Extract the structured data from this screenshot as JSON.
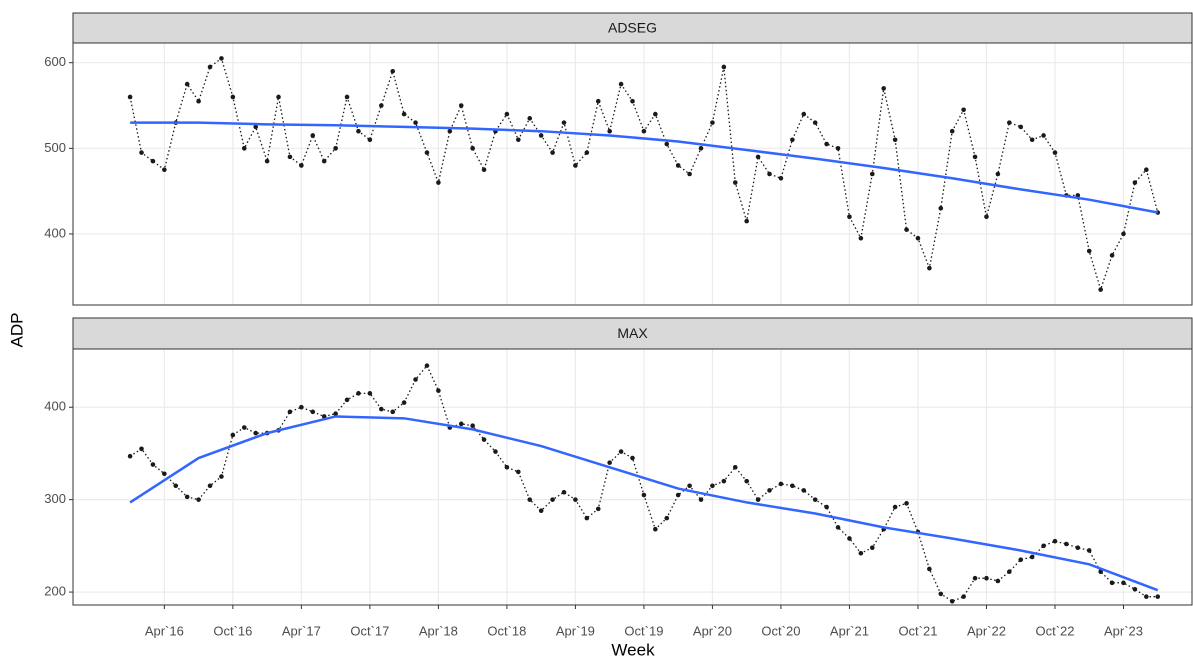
{
  "chart_data": [
    {
      "type": "line",
      "title": "ADSEG",
      "ylabel": "ADP",
      "x": [
        "2016-01",
        "2016-02",
        "2016-03",
        "2016-04",
        "2016-05",
        "2016-06",
        "2016-07",
        "2016-08",
        "2016-09",
        "2016-10",
        "2016-11",
        "2016-12",
        "2017-01",
        "2017-02",
        "2017-03",
        "2017-04",
        "2017-05",
        "2017-06",
        "2017-07",
        "2017-08",
        "2017-09",
        "2017-10",
        "2017-11",
        "2017-12",
        "2018-01",
        "2018-02",
        "2018-03",
        "2018-04",
        "2018-05",
        "2018-06",
        "2018-07",
        "2018-08",
        "2018-09",
        "2018-10",
        "2018-11",
        "2018-12",
        "2019-01",
        "2019-02",
        "2019-03",
        "2019-04",
        "2019-05",
        "2019-06",
        "2019-07",
        "2019-08",
        "2019-09",
        "2019-10",
        "2019-11",
        "2019-12",
        "2020-01",
        "2020-02",
        "2020-03",
        "2020-04",
        "2020-05",
        "2020-06",
        "2020-07",
        "2020-08",
        "2020-09",
        "2020-10",
        "2020-11",
        "2020-12",
        "2021-01",
        "2021-02",
        "2021-03",
        "2021-04",
        "2021-05",
        "2021-06",
        "2021-07",
        "2021-08",
        "2021-09",
        "2021-10",
        "2021-11",
        "2021-12",
        "2022-01",
        "2022-02",
        "2022-03",
        "2022-04",
        "2022-05",
        "2022-06",
        "2022-07",
        "2022-08",
        "2022-09",
        "2022-10",
        "2022-11",
        "2022-12",
        "2023-01",
        "2023-02",
        "2023-03",
        "2023-04",
        "2023-05",
        "2023-06",
        "2023-07"
      ],
      "values": [
        560,
        495,
        485,
        475,
        530,
        575,
        555,
        595,
        605,
        560,
        500,
        525,
        485,
        560,
        490,
        480,
        515,
        485,
        500,
        560,
        520,
        510,
        550,
        590,
        540,
        530,
        495,
        460,
        520,
        550,
        500,
        475,
        520,
        540,
        510,
        535,
        515,
        495,
        530,
        480,
        495,
        555,
        520,
        575,
        555,
        520,
        540,
        505,
        480,
        470,
        500,
        530,
        595,
        460,
        415,
        490,
        470,
        465,
        510,
        540,
        530,
        505,
        500,
        420,
        395,
        470,
        570,
        510,
        405,
        395,
        360,
        430,
        520,
        545,
        490,
        420,
        470,
        530,
        525,
        510,
        515,
        495,
        445,
        445,
        380,
        335,
        375,
        400,
        460,
        475,
        425
      ],
      "color": "#1a1a1a",
      "smooth": {
        "x": [
          "2016-01",
          "2016-07",
          "2017-01",
          "2017-07",
          "2018-01",
          "2018-07",
          "2019-01",
          "2019-07",
          "2020-01",
          "2020-07",
          "2021-01",
          "2021-07",
          "2022-01",
          "2022-07",
          "2023-01",
          "2023-07"
        ],
        "values": [
          530,
          530,
          528,
          527,
          525,
          523,
          520,
          515,
          508,
          498,
          488,
          477,
          465,
          452,
          440,
          425
        ],
        "color": "#3366ff"
      },
      "xlim": [
        "2015-08",
        "2023-10"
      ],
      "ylim": [
        317,
        623
      ],
      "yticks": [
        400,
        500,
        600
      ],
      "xticks": [
        {
          "value": "2016-04",
          "label": "Apr`16"
        },
        {
          "value": "2016-10",
          "label": "Oct`16"
        },
        {
          "value": "2017-04",
          "label": "Apr`17"
        },
        {
          "value": "2017-10",
          "label": "Oct`17"
        },
        {
          "value": "2018-04",
          "label": "Apr`18"
        },
        {
          "value": "2018-10",
          "label": "Oct`18"
        },
        {
          "value": "2019-04",
          "label": "Apr`19"
        },
        {
          "value": "2019-10",
          "label": "Oct`19"
        },
        {
          "value": "2020-04",
          "label": "Apr`20"
        },
        {
          "value": "2020-10",
          "label": "Oct`20"
        },
        {
          "value": "2021-04",
          "label": "Apr`21"
        },
        {
          "value": "2021-10",
          "label": "Oct`21"
        },
        {
          "value": "2022-04",
          "label": "Apr`22"
        },
        {
          "value": "2022-10",
          "label": "Oct`22"
        },
        {
          "value": "2023-04",
          "label": "Apr`23"
        }
      ],
      "grid": true
    },
    {
      "type": "line",
      "title": "MAX",
      "xlabel": "Week",
      "x": [
        "2016-01",
        "2016-02",
        "2016-03",
        "2016-04",
        "2016-05",
        "2016-06",
        "2016-07",
        "2016-08",
        "2016-09",
        "2016-10",
        "2016-11",
        "2016-12",
        "2017-01",
        "2017-02",
        "2017-03",
        "2017-04",
        "2017-05",
        "2017-06",
        "2017-07",
        "2017-08",
        "2017-09",
        "2017-10",
        "2017-11",
        "2017-12",
        "2018-01",
        "2018-02",
        "2018-03",
        "2018-04",
        "2018-05",
        "2018-06",
        "2018-07",
        "2018-08",
        "2018-09",
        "2018-10",
        "2018-11",
        "2018-12",
        "2019-01",
        "2019-02",
        "2019-03",
        "2019-04",
        "2019-05",
        "2019-06",
        "2019-07",
        "2019-08",
        "2019-09",
        "2019-10",
        "2019-11",
        "2019-12",
        "2020-01",
        "2020-02",
        "2020-03",
        "2020-04",
        "2020-05",
        "2020-06",
        "2020-07",
        "2020-08",
        "2020-09",
        "2020-10",
        "2020-11",
        "2020-12",
        "2021-01",
        "2021-02",
        "2021-03",
        "2021-04",
        "2021-05",
        "2021-06",
        "2021-07",
        "2021-08",
        "2021-09",
        "2021-10",
        "2021-11",
        "2021-12",
        "2022-01",
        "2022-02",
        "2022-03",
        "2022-04",
        "2022-05",
        "2022-06",
        "2022-07",
        "2022-08",
        "2022-09",
        "2022-10",
        "2022-11",
        "2022-12",
        "2023-01",
        "2023-02",
        "2023-03",
        "2023-04",
        "2023-05",
        "2023-06",
        "2023-07"
      ],
      "values": [
        347,
        355,
        338,
        328,
        315,
        303,
        300,
        315,
        325,
        370,
        378,
        372,
        372,
        375,
        395,
        400,
        395,
        390,
        393,
        408,
        415,
        415,
        398,
        395,
        405,
        430,
        445,
        418,
        378,
        382,
        380,
        365,
        352,
        335,
        330,
        300,
        288,
        300,
        308,
        300,
        280,
        290,
        340,
        352,
        345,
        305,
        268,
        280,
        305,
        315,
        300,
        315,
        320,
        335,
        320,
        300,
        310,
        317,
        315,
        310,
        300,
        292,
        270,
        258,
        242,
        248,
        268,
        292,
        296,
        265,
        225,
        198,
        190,
        195,
        215,
        215,
        212,
        222,
        235,
        238,
        250,
        255,
        252,
        248,
        245,
        222,
        210,
        210,
        203,
        195,
        195
      ],
      "color": "#1a1a1a",
      "smooth": {
        "x": [
          "2016-01",
          "2016-07",
          "2017-01",
          "2017-07",
          "2018-01",
          "2018-07",
          "2019-01",
          "2019-07",
          "2020-01",
          "2020-07",
          "2021-01",
          "2021-07",
          "2022-01",
          "2022-07",
          "2023-01",
          "2023-07"
        ],
        "values": [
          297,
          345,
          372,
          390,
          388,
          376,
          358,
          335,
          312,
          297,
          285,
          270,
          258,
          245,
          230,
          202
        ],
        "color": "#3366ff"
      },
      "xlim": [
        "2015-08",
        "2023-10"
      ],
      "ylim": [
        186,
        463
      ],
      "yticks": [
        200,
        300,
        400
      ],
      "xticks": [
        {
          "value": "2016-04",
          "label": "Apr`16"
        },
        {
          "value": "2016-10",
          "label": "Oct`16"
        },
        {
          "value": "2017-04",
          "label": "Apr`17"
        },
        {
          "value": "2017-10",
          "label": "Oct`17"
        },
        {
          "value": "2018-04",
          "label": "Apr`18"
        },
        {
          "value": "2018-10",
          "label": "Oct`18"
        },
        {
          "value": "2019-04",
          "label": "Apr`19"
        },
        {
          "value": "2019-10",
          "label": "Oct`19"
        },
        {
          "value": "2020-04",
          "label": "Apr`20"
        },
        {
          "value": "2020-10",
          "label": "Oct`20"
        },
        {
          "value": "2021-04",
          "label": "Apr`21"
        },
        {
          "value": "2021-10",
          "label": "Oct`21"
        },
        {
          "value": "2022-04",
          "label": "Apr`22"
        },
        {
          "value": "2022-10",
          "label": "Oct`22"
        },
        {
          "value": "2023-04",
          "label": "Apr`23"
        }
      ],
      "grid": true
    }
  ]
}
